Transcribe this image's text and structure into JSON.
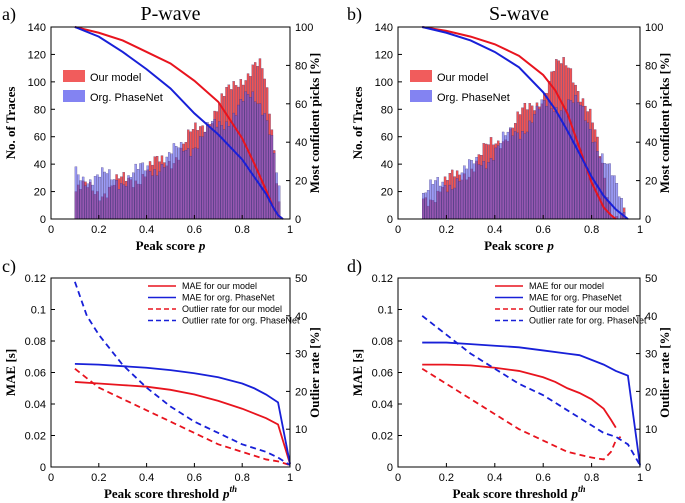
{
  "chart_data": [
    {
      "id": "a",
      "type": "bar",
      "panel_label": "a)",
      "title": "P-wave",
      "xlabel": "Peak score",
      "xlabel_symbol": "p",
      "ylabel": "No. of Traces",
      "y2label": "Most confident picks [%]",
      "xlim": [
        0,
        1
      ],
      "ylim": [
        0,
        140
      ],
      "y2lim": [
        0,
        100
      ],
      "xticks": [
        "0",
        "0.2",
        "0.4",
        "0.6",
        "0.8",
        "1"
      ],
      "yticks": [
        "0",
        "20",
        "40",
        "60",
        "80",
        "100",
        "120",
        "140"
      ],
      "y2ticks": [
        "0",
        "20",
        "40",
        "60",
        "80",
        "100"
      ],
      "legend": [
        {
          "name": "Our model",
          "color": "#f04a4a"
        },
        {
          "name": "Org. PhaseNet",
          "color": "#5a5aee"
        }
      ],
      "hist_range": [
        0.1,
        0.96
      ],
      "bins": 86,
      "series": [
        {
          "name": "Our model",
          "color": "#f04a4a",
          "profile": [
            [
              0.1,
              20
            ],
            [
              0.2,
              21
            ],
            [
              0.3,
              26
            ],
            [
              0.4,
              35
            ],
            [
              0.5,
              44
            ],
            [
              0.55,
              52
            ],
            [
              0.6,
              62
            ],
            [
              0.65,
              72
            ],
            [
              0.7,
              82
            ],
            [
              0.75,
              92
            ],
            [
              0.8,
              105
            ],
            [
              0.85,
              112
            ],
            [
              0.88,
              108
            ],
            [
              0.9,
              95
            ],
            [
              0.93,
              60
            ],
            [
              0.96,
              8
            ]
          ]
        },
        {
          "name": "Org. PhaseNet",
          "color": "#5a5aee",
          "profile": [
            [
              0.1,
              34
            ],
            [
              0.15,
              32
            ],
            [
              0.2,
              29
            ],
            [
              0.3,
              30
            ],
            [
              0.4,
              35
            ],
            [
              0.5,
              45
            ],
            [
              0.6,
              56
            ],
            [
              0.7,
              68
            ],
            [
              0.75,
              76
            ],
            [
              0.8,
              83
            ],
            [
              0.85,
              88
            ],
            [
              0.88,
              86
            ],
            [
              0.9,
              80
            ],
            [
              0.93,
              55
            ],
            [
              0.96,
              8
            ]
          ]
        }
      ],
      "curves": [
        {
          "name": "Our model",
          "axis": "right",
          "color": "#e8141e",
          "x": [
            0.1,
            0.2,
            0.3,
            0.4,
            0.5,
            0.6,
            0.7,
            0.8,
            0.85,
            0.9,
            0.93,
            0.95,
            0.97
          ],
          "y": [
            100,
            97,
            93,
            87,
            81,
            72,
            61,
            42,
            29,
            15,
            6,
            2,
            0
          ]
        },
        {
          "name": "Org. PhaseNet",
          "axis": "right",
          "color": "#1820d8",
          "x": [
            0.1,
            0.2,
            0.3,
            0.4,
            0.5,
            0.6,
            0.7,
            0.8,
            0.85,
            0.9,
            0.93,
            0.95,
            0.97
          ],
          "y": [
            100,
            95,
            87,
            78,
            68,
            55,
            44,
            31,
            22,
            13,
            6,
            2,
            0
          ]
        }
      ]
    },
    {
      "id": "b",
      "type": "bar",
      "panel_label": "b)",
      "title": "S-wave",
      "xlabel": "Peak score",
      "xlabel_symbol": "p",
      "ylabel": "No. of Traces",
      "y2label": "Most confident picks [%]",
      "xlim": [
        0,
        1
      ],
      "ylim": [
        0,
        140
      ],
      "y2lim": [
        0,
        100
      ],
      "xticks": [
        "0",
        "0.2",
        "0.4",
        "0.6",
        "0.8",
        "1"
      ],
      "yticks": [
        "0",
        "20",
        "40",
        "60",
        "80",
        "100",
        "120",
        "140"
      ],
      "y2ticks": [
        "0",
        "20",
        "40",
        "60",
        "80",
        "100"
      ],
      "legend": [
        {
          "name": "Our model",
          "color": "#f04a4a"
        },
        {
          "name": "Org. PhaseNet",
          "color": "#5a5aee"
        }
      ],
      "hist_range": [
        0.1,
        0.94
      ],
      "bins": 84,
      "series": [
        {
          "name": "Our model",
          "color": "#f04a4a",
          "profile": [
            [
              0.1,
              14
            ],
            [
              0.2,
              25
            ],
            [
              0.3,
              38
            ],
            [
              0.4,
              55
            ],
            [
              0.5,
              72
            ],
            [
              0.6,
              92
            ],
            [
              0.65,
              108
            ],
            [
              0.7,
              113
            ],
            [
              0.72,
              110
            ],
            [
              0.75,
              95
            ],
            [
              0.8,
              70
            ],
            [
              0.85,
              35
            ],
            [
              0.88,
              10
            ],
            [
              0.9,
              3
            ]
          ]
        },
        {
          "name": "Org. PhaseNet",
          "color": "#5a5aee",
          "profile": [
            [
              0.1,
              18
            ],
            [
              0.2,
              26
            ],
            [
              0.3,
              36
            ],
            [
              0.4,
              50
            ],
            [
              0.5,
              65
            ],
            [
              0.6,
              80
            ],
            [
              0.7,
              86
            ],
            [
              0.75,
              80
            ],
            [
              0.8,
              66
            ],
            [
              0.85,
              45
            ],
            [
              0.9,
              22
            ],
            [
              0.94,
              5
            ]
          ]
        }
      ],
      "curves": [
        {
          "name": "Our model",
          "axis": "right",
          "color": "#e8141e",
          "x": [
            0.1,
            0.2,
            0.3,
            0.4,
            0.5,
            0.6,
            0.65,
            0.7,
            0.75,
            0.8,
            0.85,
            0.88,
            0.9
          ],
          "y": [
            100,
            98,
            95,
            91,
            85,
            75,
            67,
            55,
            37,
            19,
            6,
            2,
            0
          ]
        },
        {
          "name": "Org. PhaseNet",
          "axis": "right",
          "color": "#1820d8",
          "x": [
            0.1,
            0.2,
            0.3,
            0.4,
            0.5,
            0.6,
            0.65,
            0.7,
            0.75,
            0.8,
            0.85,
            0.9,
            0.95
          ],
          "y": [
            100,
            97,
            93,
            87,
            79,
            66,
            57,
            46,
            34,
            22,
            12,
            5,
            0
          ]
        }
      ]
    },
    {
      "id": "c",
      "type": "line",
      "panel_label": "c)",
      "xlabel": "Peak score threshold",
      "xlabel_symbol": "p",
      "xlabel_sup": "th",
      "ylabel": "MAE [s]",
      "y2label": "Outlier rate [%]",
      "xlim": [
        0,
        1
      ],
      "ylim": [
        0,
        0.12
      ],
      "y2lim": [
        0,
        50
      ],
      "xticks": [
        "0",
        "0.2",
        "0.4",
        "0.6",
        "0.8",
        "1"
      ],
      "yticks": [
        "0",
        "0.02",
        "0.04",
        "0.06",
        "0.08",
        "0.1",
        "0.12"
      ],
      "y2ticks": [
        "0",
        "10",
        "20",
        "30",
        "40",
        "50"
      ],
      "legend": [
        {
          "name": "MAE for our model",
          "color": "#e8141e",
          "dash": false
        },
        {
          "name": "MAE for org. PhaseNet",
          "color": "#1820d8",
          "dash": false
        },
        {
          "name": "Outlier rate for our model",
          "color": "#e8141e",
          "dash": true
        },
        {
          "name": "Outlier rate for org. PhaseNet",
          "color": "#1820d8",
          "dash": true
        }
      ],
      "series": [
        {
          "name": "MAE for our model",
          "axis": "left",
          "color": "#e8141e",
          "dash": false,
          "x": [
            0.1,
            0.2,
            0.3,
            0.4,
            0.5,
            0.6,
            0.7,
            0.8,
            0.85,
            0.9,
            0.95,
            1.0
          ],
          "y": [
            0.054,
            0.053,
            0.052,
            0.051,
            0.049,
            0.046,
            0.042,
            0.037,
            0.034,
            0.031,
            0.027,
            0.002
          ]
        },
        {
          "name": "MAE for org. PhaseNet",
          "axis": "left",
          "color": "#1820d8",
          "dash": false,
          "x": [
            0.1,
            0.2,
            0.3,
            0.4,
            0.5,
            0.6,
            0.7,
            0.8,
            0.85,
            0.9,
            0.95,
            1.0
          ],
          "y": [
            0.0655,
            0.065,
            0.064,
            0.063,
            0.0615,
            0.0595,
            0.057,
            0.053,
            0.05,
            0.046,
            0.041,
            0.002
          ]
        },
        {
          "name": "Outlier rate for our model",
          "axis": "right",
          "color": "#e8141e",
          "dash": true,
          "x": [
            0.1,
            0.2,
            0.3,
            0.4,
            0.5,
            0.6,
            0.7,
            0.8,
            0.85,
            0.9,
            0.95,
            1.0
          ],
          "y": [
            26,
            21,
            18,
            15,
            12,
            9,
            6,
            4,
            3,
            2,
            1.5,
            0.5
          ]
        },
        {
          "name": "Outlier rate for org. PhaseNet",
          "axis": "right",
          "color": "#1820d8",
          "dash": true,
          "x": [
            0.1,
            0.15,
            0.2,
            0.3,
            0.4,
            0.5,
            0.6,
            0.7,
            0.8,
            0.85,
            0.9,
            0.95,
            1.0
          ],
          "y": [
            49,
            40,
            35,
            27,
            21,
            16,
            12,
            9,
            6,
            5,
            4,
            2.5,
            0.5
          ]
        }
      ]
    },
    {
      "id": "d",
      "type": "line",
      "panel_label": "d)",
      "xlabel": "Peak score threshold",
      "xlabel_symbol": "p",
      "xlabel_sup": "th",
      "ylabel": "MAE [s]",
      "y2label": "Outlier rate [%]",
      "xlim": [
        0,
        1
      ],
      "ylim": [
        0,
        0.12
      ],
      "y2lim": [
        0,
        50
      ],
      "xticks": [
        "0",
        "0.2",
        "0.4",
        "0.6",
        "0.8",
        "1"
      ],
      "yticks": [
        "0",
        "0.02",
        "0.04",
        "0.06",
        "0.08",
        "0.1",
        "0.12"
      ],
      "y2ticks": [
        "0",
        "10",
        "20",
        "30",
        "40",
        "50"
      ],
      "legend": [
        {
          "name": "MAE for our model",
          "color": "#e8141e",
          "dash": false
        },
        {
          "name": "MAE for org. PhaseNet",
          "color": "#1820d8",
          "dash": false
        },
        {
          "name": "Outlier rate for our model",
          "color": "#e8141e",
          "dash": true
        },
        {
          "name": "Outlier rate for org. PhaseNet",
          "color": "#1820d8",
          "dash": true
        }
      ],
      "series": [
        {
          "name": "MAE for our model",
          "axis": "left",
          "color": "#e8141e",
          "dash": false,
          "x": [
            0.1,
            0.2,
            0.3,
            0.4,
            0.5,
            0.6,
            0.65,
            0.7,
            0.75,
            0.8,
            0.85,
            0.88,
            0.9
          ],
          "y": [
            0.065,
            0.065,
            0.0645,
            0.063,
            0.061,
            0.057,
            0.054,
            0.05,
            0.047,
            0.043,
            0.037,
            0.03,
            0.025
          ]
        },
        {
          "name": "MAE for org. PhaseNet",
          "axis": "left",
          "color": "#1820d8",
          "dash": false,
          "x": [
            0.1,
            0.2,
            0.3,
            0.4,
            0.5,
            0.6,
            0.7,
            0.75,
            0.8,
            0.85,
            0.9,
            0.95,
            1.0
          ],
          "y": [
            0.079,
            0.079,
            0.078,
            0.077,
            0.076,
            0.074,
            0.072,
            0.071,
            0.068,
            0.065,
            0.061,
            0.058,
            0.001
          ]
        },
        {
          "name": "Outlier rate for our model",
          "axis": "right",
          "color": "#e8141e",
          "dash": true,
          "x": [
            0.1,
            0.2,
            0.3,
            0.4,
            0.5,
            0.6,
            0.7,
            0.8,
            0.85,
            0.88,
            0.9,
            0.92
          ],
          "y": [
            26,
            22,
            18,
            14,
            10,
            7,
            4,
            2.5,
            2,
            4,
            7,
            8
          ]
        },
        {
          "name": "Outlier rate for org. PhaseNet",
          "axis": "right",
          "color": "#1820d8",
          "dash": true,
          "x": [
            0.1,
            0.2,
            0.3,
            0.4,
            0.5,
            0.6,
            0.7,
            0.8,
            0.85,
            0.9,
            0.95,
            1.0
          ],
          "y": [
            40,
            35,
            30,
            26,
            22,
            19,
            15,
            11,
            9,
            8,
            6,
            0.5
          ]
        }
      ]
    }
  ]
}
